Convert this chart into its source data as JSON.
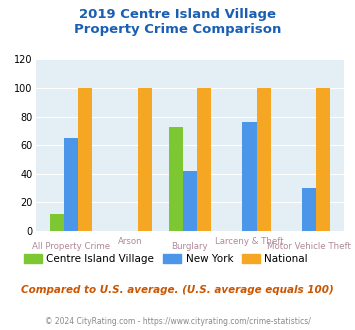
{
  "title_line1": "2019 Centre Island Village",
  "title_line2": "Property Crime Comparison",
  "categories": [
    "All Property Crime",
    "Arson",
    "Burglary",
    "Larceny & Theft",
    "Motor Vehicle Theft"
  ],
  "centre_island": [
    12,
    0,
    73,
    0,
    0
  ],
  "new_york": [
    65,
    0,
    42,
    76,
    30
  ],
  "national": [
    100,
    100,
    100,
    100,
    100
  ],
  "ylim": [
    0,
    120
  ],
  "yticks": [
    0,
    20,
    40,
    60,
    80,
    100,
    120
  ],
  "color_centre": "#7dc832",
  "color_ny": "#4b96e8",
  "color_national": "#f5a623",
  "color_title": "#1a5fb4",
  "color_xlabel": "#b08898",
  "color_footer_label": "#888888",
  "color_footer_link": "#4488cc",
  "color_note": "#cc5500",
  "bg_chart": "#e3eff5",
  "legend_labels": [
    "Centre Island Village",
    "New York",
    "National"
  ],
  "note_text": "Compared to U.S. average. (U.S. average equals 100)",
  "footer_text_left": "© 2024 CityRating.com - ",
  "footer_text_link": "https://www.cityrating.com/crime-statistics/"
}
